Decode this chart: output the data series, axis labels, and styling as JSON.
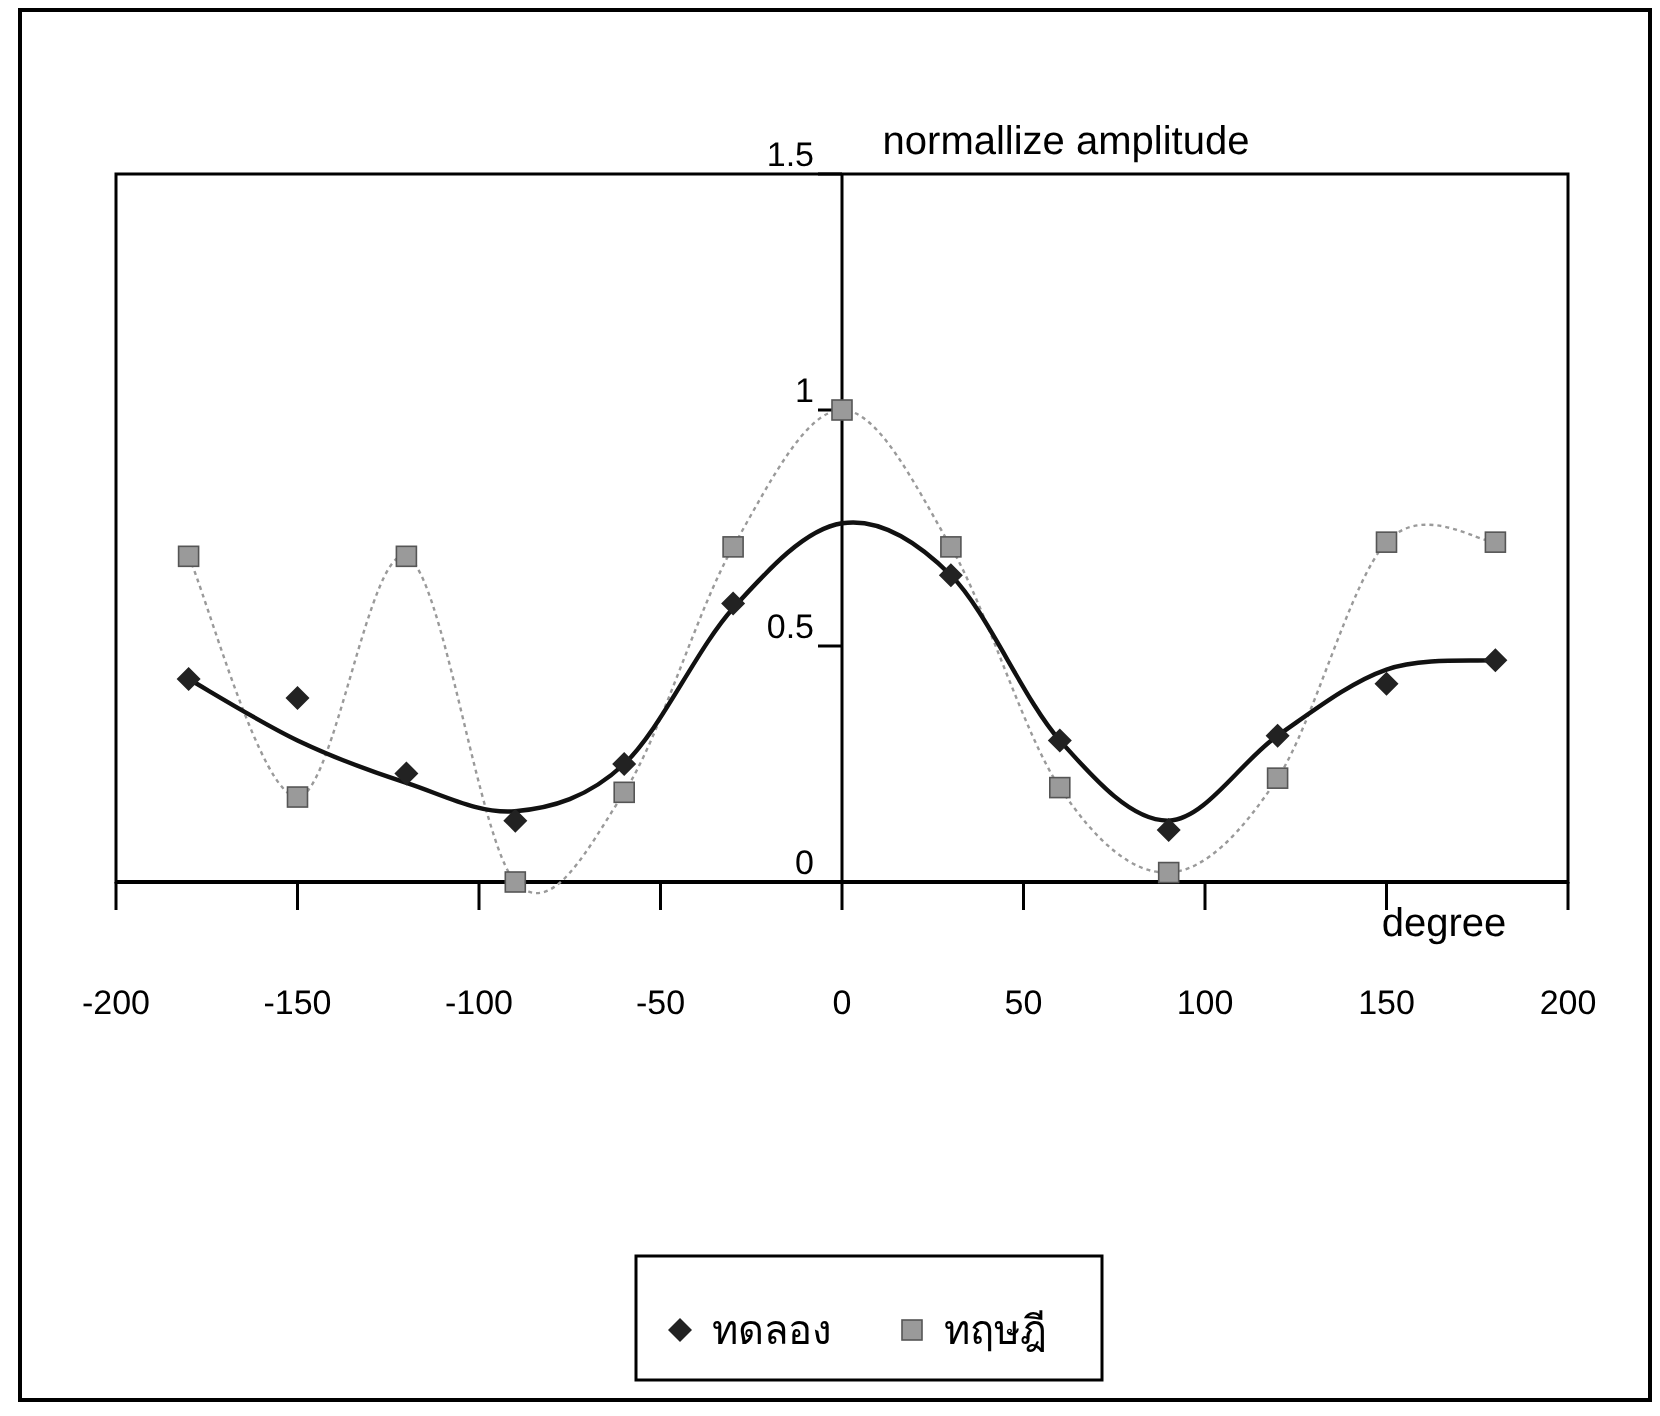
{
  "chart_data": {
    "type": "line",
    "xlabel": "degree",
    "ylabel": "normallize amplitude",
    "x": [
      -180,
      -150,
      -120,
      -90,
      -60,
      -30,
      0,
      30,
      60,
      90,
      120,
      150,
      180
    ],
    "series": [
      {
        "name": "ทดลอง",
        "type": "scatter",
        "color": "#222222",
        "marker": "diamond",
        "values": [
          0.43,
          0.39,
          0.23,
          0.13,
          0.25,
          0.59,
          null,
          0.65,
          0.3,
          0.11,
          0.31,
          0.42,
          0.47
        ]
      },
      {
        "name": "ทฤษฎี",
        "type": "line",
        "color": "#9a9a9a",
        "marker": "square",
        "line_style": "dotted",
        "values": [
          0.69,
          0.18,
          0.69,
          0,
          0.19,
          0.71,
          1.0,
          0.71,
          0.2,
          0.02,
          0.22,
          0.72,
          0.72
        ]
      },
      {
        "color": "#111111",
        "marker": "none",
        "line_style": "solid",
        "x": [
          -180,
          -150,
          -120,
          -90,
          -60,
          -30,
          0,
          30,
          60,
          90,
          120,
          150,
          180
        ],
        "values": [
          0.43,
          0.3,
          0.21,
          0.15,
          0.25,
          0.58,
          0.76,
          0.65,
          0.3,
          0.13,
          0.31,
          0.45,
          0.47
        ]
      }
    ],
    "xlim": [
      -200,
      200
    ],
    "xticks": [
      -200,
      -150,
      -100,
      -50,
      0,
      50,
      100,
      150,
      200
    ],
    "ylim": [
      0,
      1.5
    ],
    "yticks": [
      0,
      0.5,
      1,
      1.5
    ],
    "grid": false,
    "legend": "bottom"
  }
}
